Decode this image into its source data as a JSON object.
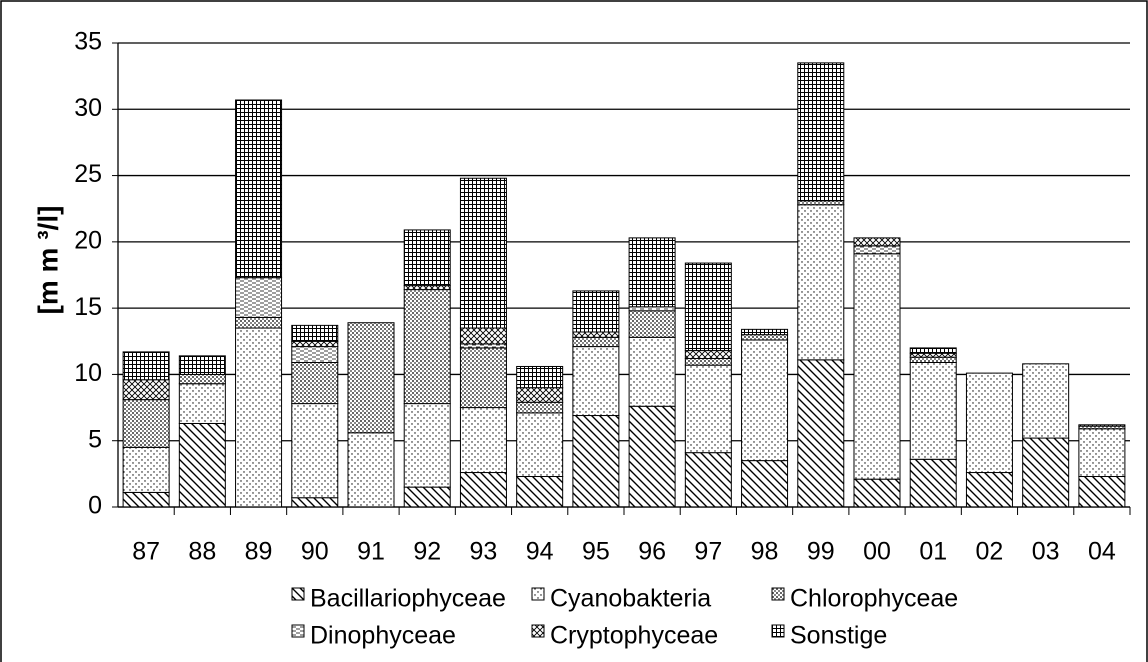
{
  "chart_data": {
    "type": "stacked_bar",
    "y_label": "[m m ³/l]",
    "categories": [
      "87",
      "88",
      "89",
      "90",
      "91",
      "92",
      "93",
      "94",
      "95",
      "96",
      "97",
      "98",
      "99",
      "00",
      "01",
      "02",
      "03",
      "04"
    ],
    "series": [
      {
        "name": "Bacillariophyceae",
        "color": "#000000",
        "values": [
          1.1,
          6.3,
          0,
          0.7,
          0,
          1.5,
          2.6,
          2.3,
          6.9,
          7.6,
          4.1,
          3.5,
          11.1,
          2.1,
          3.6,
          2.6,
          5.2,
          2.3
        ]
      },
      {
        "name": "Cyanobakteria",
        "color": "#000000",
        "values": [
          3.4,
          3.0,
          13.5,
          7.1,
          5.6,
          6.3,
          4.9,
          4.8,
          5.2,
          5.2,
          6.6,
          9.1,
          11.7,
          17.0,
          7.3,
          7.5,
          5.6,
          3.6
        ]
      },
      {
        "name": "Chlorophyceae",
        "color": "#000000",
        "values": [
          3.6,
          0.7,
          0.8,
          3.1,
          8.3,
          8.6,
          4.5,
          0.8,
          0.7,
          2.0,
          0.5,
          0.4,
          0.3,
          0,
          0.4,
          0,
          0,
          0.2
        ]
      },
      {
        "name": "Dinophyceae",
        "color": "#000000",
        "values": [
          0,
          0,
          3.0,
          1.2,
          0,
          0,
          0.3,
          0,
          0,
          0.3,
          0,
          0,
          0,
          0.6,
          0,
          0,
          0,
          0
        ]
      },
      {
        "name": "Cryptophyceae",
        "color": "#000000",
        "values": [
          1.5,
          0,
          0,
          0.4,
          0,
          0.3,
          1.2,
          1.1,
          0.4,
          0,
          0.6,
          0,
          0,
          0.6,
          0.3,
          0,
          0,
          0
        ]
      },
      {
        "name": "Sonstige",
        "color": "#000000",
        "values": [
          2.1,
          1.4,
          13.4,
          1.2,
          0,
          4.2,
          11.3,
          1.6,
          3.1,
          5.2,
          6.6,
          0.4,
          10.4,
          0,
          0.4,
          0,
          0,
          0.1
        ]
      }
    ],
    "ylim": [
      0,
      35
    ],
    "yticks": [
      0,
      5,
      10,
      15,
      20,
      25,
      30,
      35
    ],
    "grid": true,
    "legend": "bottom"
  }
}
